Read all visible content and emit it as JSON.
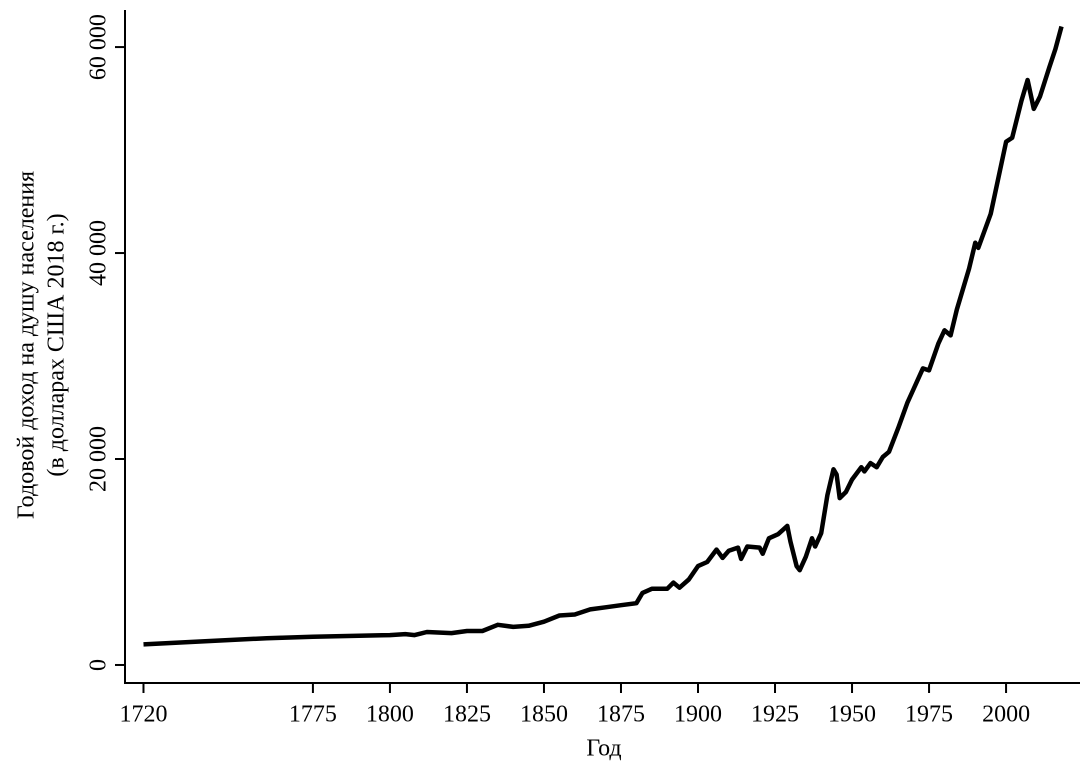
{
  "chart_data": {
    "type": "line",
    "xlabel": "Год",
    "ylabel": [
      "Годовой доход на душу населения",
      "(в долларах США 2018 г.)"
    ],
    "color": "#000000",
    "xlim": [
      1714,
      2024
    ],
    "xticks": [
      1720,
      1775,
      1800,
      1825,
      1850,
      1875,
      1900,
      1925,
      1950,
      1975,
      2000
    ],
    "ylim": [
      -1750,
      63600
    ],
    "yticks": [
      0,
      {
        "value": 20000,
        "label": "20 000"
      },
      {
        "value": 40000,
        "label": "40 000"
      },
      {
        "value": 60000,
        "label": "60 000"
      }
    ],
    "x": [
      1720,
      1740,
      1760,
      1775,
      1800,
      1805,
      1808,
      1812,
      1820,
      1825,
      1830,
      1835,
      1840,
      1845,
      1850,
      1855,
      1860,
      1865,
      1870,
      1875,
      1880,
      1882,
      1885,
      1890,
      1892,
      1894,
      1897,
      1900,
      1903,
      1906,
      1908,
      1910,
      1913,
      1914,
      1916,
      1920,
      1921,
      1923,
      1926,
      1929,
      1930,
      1932,
      1933,
      1935,
      1937,
      1938,
      1940,
      1942,
      1944,
      1945,
      1946,
      1948,
      1950,
      1953,
      1954,
      1956,
      1958,
      1960,
      1962,
      1965,
      1968,
      1970,
      1973,
      1975,
      1978,
      1980,
      1982,
      1984,
      1988,
      1990,
      1991,
      1995,
      2000,
      2002,
      2005,
      2007,
      2009,
      2011,
      2014,
      2016,
      2018
    ],
    "values": [
      2000,
      2300,
      2600,
      2750,
      2900,
      3000,
      2900,
      3200,
      3100,
      3300,
      3300,
      3900,
      3700,
      3800,
      4200,
      4800,
      4900,
      5400,
      5600,
      5800,
      6000,
      7000,
      7400,
      7400,
      8000,
      7500,
      8300,
      9600,
      10000,
      11200,
      10400,
      11100,
      11400,
      10300,
      11500,
      11400,
      10800,
      12300,
      12700,
      13500,
      12000,
      9600,
      9200,
      10500,
      12300,
      11500,
      12800,
      16500,
      19000,
      18500,
      16200,
      16800,
      18000,
      19200,
      18800,
      19600,
      19200,
      20200,
      20700,
      23000,
      25500,
      26800,
      28800,
      28600,
      31200,
      32500,
      32000,
      34500,
      38500,
      41000,
      40500,
      43800,
      50800,
      51200,
      54800,
      56800,
      54000,
      55200,
      58000,
      59800,
      62000
    ]
  }
}
